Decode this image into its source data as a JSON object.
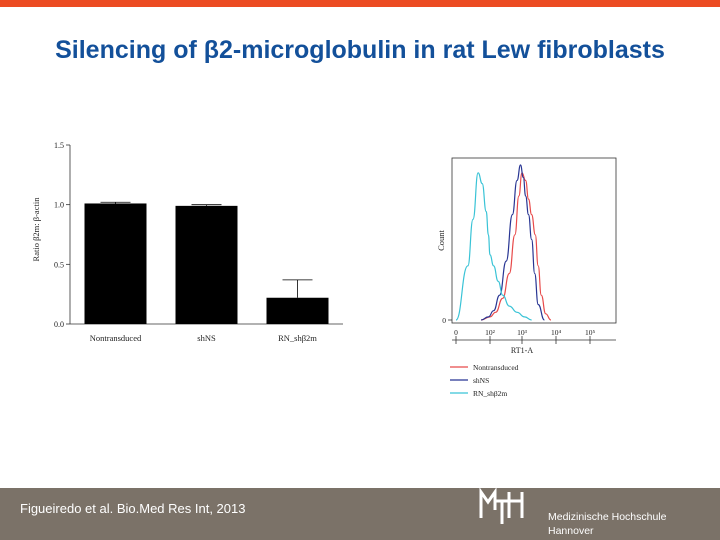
{
  "slide": {
    "title": "Silencing of β2-microglobulin in rat Lew fibroblasts",
    "accent_color": "#ec4b22",
    "title_color": "#13509a"
  },
  "footer": {
    "citation": "Figueiredo et al. Bio.Med Res Int, 2013",
    "logo_letters": "MHH",
    "institution_line1": "Medizinische Hochschule",
    "institution_line2": "Hannover",
    "background_color": "#7b7268"
  },
  "chart_data": [
    {
      "type": "bar",
      "categories": [
        "Nontransduced",
        "shNS",
        "RN_shβ2m"
      ],
      "values": [
        1.01,
        0.99,
        0.22
      ],
      "error_upper": [
        0.01,
        0.01,
        0.15
      ],
      "ylabel": "Ratio β2m: β-actin",
      "ylim": [
        0,
        1.5
      ],
      "yticks": [
        "0.0",
        "0.5",
        "1.0",
        "1.5"
      ],
      "bar_color": "#000000"
    },
    {
      "type": "line",
      "xlabel": "RT1-A",
      "ylabel": "Count",
      "x_scale": "log",
      "xticks": [
        "0",
        "10²",
        "10³",
        "10⁴",
        "10⁵"
      ],
      "yticks": [
        "0"
      ],
      "legend_position": "bottom",
      "series": [
        {
          "name": "Nontransduced",
          "color": "#e84a4a",
          "x": [
            30,
            100,
            150,
            250,
            400,
            600,
            800,
            1000,
            1300,
            1600,
            2000,
            2600,
            3200,
            4000,
            5500,
            8000
          ],
          "y": [
            0.0,
            0.02,
            0.05,
            0.14,
            0.3,
            0.55,
            0.8,
            0.95,
            0.9,
            0.78,
            0.68,
            0.55,
            0.35,
            0.16,
            0.04,
            0.0
          ]
        },
        {
          "name": "shNS",
          "color": "#283593",
          "x": [
            30,
            80,
            130,
            200,
            320,
            500,
            700,
            900,
            1100,
            1300,
            1600,
            2000,
            2500,
            3200,
            5000
          ],
          "y": [
            0.0,
            0.02,
            0.06,
            0.16,
            0.38,
            0.68,
            0.9,
            1.0,
            0.92,
            0.8,
            0.68,
            0.52,
            0.3,
            0.1,
            0.0
          ]
        },
        {
          "name": "RN_shβ2m",
          "color": "#39c3d6",
          "x": [
            1,
            5,
            10,
            20,
            35,
            60,
            80,
            100,
            130,
            180,
            250,
            400,
            700,
            1200,
            2000
          ],
          "y": [
            0.0,
            0.35,
            0.65,
            0.95,
            0.88,
            0.7,
            0.55,
            0.42,
            0.35,
            0.25,
            0.16,
            0.09,
            0.05,
            0.02,
            0.0
          ]
        }
      ]
    }
  ]
}
